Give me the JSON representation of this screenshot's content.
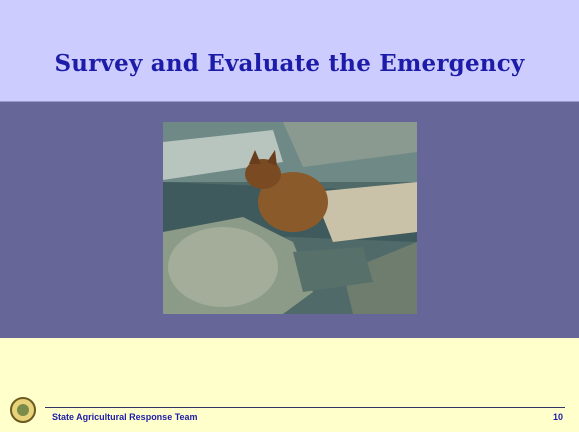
{
  "header": {
    "title": "Survey and Evaluate the Emergency"
  },
  "footer": {
    "text": "State Agricultural Response Team",
    "page_number": "10"
  }
}
